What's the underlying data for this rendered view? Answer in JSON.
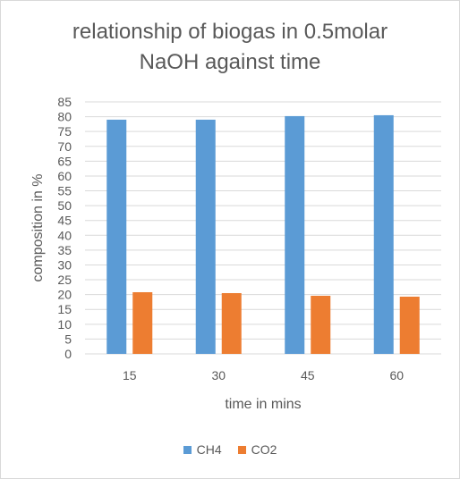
{
  "chart_data": {
    "type": "bar",
    "title_line1": "relationship of biogas in 0.5molar",
    "title_line2": "NaOH  against time",
    "xlabel": "time in mins",
    "ylabel": "composition in %",
    "categories": [
      "15",
      "30",
      "45",
      "60"
    ],
    "series": [
      {
        "name": "CH4",
        "color": "#5b9bd5",
        "values": [
          79,
          79,
          80.2,
          80.5
        ]
      },
      {
        "name": "CO2",
        "color": "#ed7d31",
        "values": [
          20.8,
          20.5,
          19.6,
          19.3
        ]
      }
    ],
    "ylim": [
      0,
      85
    ],
    "yticks": [
      0,
      5,
      10,
      15,
      20,
      25,
      30,
      35,
      40,
      45,
      50,
      55,
      60,
      65,
      70,
      75,
      80,
      85
    ],
    "grid": true,
    "legend_position": "bottom"
  }
}
